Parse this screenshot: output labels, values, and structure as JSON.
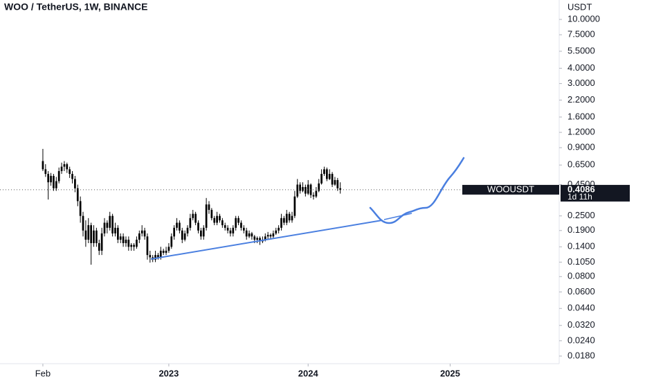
{
  "chart_data": {
    "type": "candlestick",
    "title": "WOO / TetherUS, 1W, BINANCE",
    "y_axis_label": "USDT",
    "symbol_label": "WOOUSDT",
    "last_price": 0.4086,
    "countdown": "1d 11h",
    "color": "#000000",
    "log_scale": true,
    "grid": false,
    "xlim": [
      -16,
      192.7
    ],
    "xticks": [
      {
        "value": 0,
        "label": "Feb"
      },
      {
        "value": 47,
        "label": "2023"
      },
      {
        "value": 99,
        "label": "2024"
      },
      {
        "value": 152,
        "label": "2025"
      }
    ],
    "ylim": [
      0.0156,
      14.4
    ],
    "yticks": [
      {
        "value": 10,
        "label": "10.0000"
      },
      {
        "value": 7.5,
        "label": "7.5000"
      },
      {
        "value": 5.5,
        "label": "5.5000"
      },
      {
        "value": 4,
        "label": "4.0000"
      },
      {
        "value": 3,
        "label": "3.0000"
      },
      {
        "value": 2.2,
        "label": "2.2000"
      },
      {
        "value": 1.6,
        "label": "1.6000"
      },
      {
        "value": 1.2,
        "label": "1.2000"
      },
      {
        "value": 0.9,
        "label": "0.9000"
      },
      {
        "value": 0.65,
        "label": "0.6500"
      },
      {
        "value": 0.45,
        "label": "0.4500"
      },
      {
        "value": 0.25,
        "label": "0.2500"
      },
      {
        "value": 0.19,
        "label": "0.1900"
      },
      {
        "value": 0.14,
        "label": "0.1400"
      },
      {
        "value": 0.105,
        "label": "0.1050"
      },
      {
        "value": 0.08,
        "label": "0.0800"
      },
      {
        "value": 0.06,
        "label": "0.0600"
      },
      {
        "value": 0.044,
        "label": "0.0440"
      },
      {
        "value": 0.032,
        "label": "0.0320"
      },
      {
        "value": 0.024,
        "label": "0.0240"
      },
      {
        "value": 0.018,
        "label": "0.0180"
      }
    ],
    "candles": [
      [
        0.7,
        0.88,
        0.58,
        0.6
      ],
      [
        0.6,
        0.66,
        0.52,
        0.55
      ],
      [
        0.55,
        0.58,
        0.34,
        0.47
      ],
      [
        0.47,
        0.56,
        0.44,
        0.53
      ],
      [
        0.53,
        0.55,
        0.4,
        0.42
      ],
      [
        0.42,
        0.52,
        0.4,
        0.48
      ],
      [
        0.48,
        0.62,
        0.46,
        0.58
      ],
      [
        0.58,
        0.68,
        0.55,
        0.63
      ],
      [
        0.63,
        0.7,
        0.58,
        0.66
      ],
      [
        0.66,
        0.68,
        0.56,
        0.6
      ],
      [
        0.6,
        0.63,
        0.51,
        0.55
      ],
      [
        0.55,
        0.58,
        0.46,
        0.5
      ],
      [
        0.5,
        0.53,
        0.39,
        0.42
      ],
      [
        0.42,
        0.45,
        0.3,
        0.33
      ],
      [
        0.33,
        0.36,
        0.22,
        0.25
      ],
      [
        0.25,
        0.27,
        0.17,
        0.19
      ],
      [
        0.19,
        0.23,
        0.14,
        0.16
      ],
      [
        0.16,
        0.24,
        0.15,
        0.21
      ],
      [
        0.21,
        0.22,
        0.1,
        0.15
      ],
      [
        0.15,
        0.21,
        0.14,
        0.19
      ],
      [
        0.19,
        0.2,
        0.14,
        0.15
      ],
      [
        0.15,
        0.16,
        0.12,
        0.13
      ],
      [
        0.13,
        0.2,
        0.12,
        0.18
      ],
      [
        0.18,
        0.24,
        0.17,
        0.22
      ],
      [
        0.22,
        0.23,
        0.18,
        0.2
      ],
      [
        0.2,
        0.27,
        0.19,
        0.25
      ],
      [
        0.25,
        0.26,
        0.17,
        0.18
      ],
      [
        0.18,
        0.22,
        0.17,
        0.2
      ],
      [
        0.2,
        0.21,
        0.15,
        0.16
      ],
      [
        0.16,
        0.18,
        0.15,
        0.17
      ],
      [
        0.17,
        0.18,
        0.14,
        0.15
      ],
      [
        0.15,
        0.17,
        0.14,
        0.16
      ],
      [
        0.16,
        0.17,
        0.13,
        0.14
      ],
      [
        0.14,
        0.15,
        0.13,
        0.145
      ],
      [
        0.145,
        0.15,
        0.13,
        0.14
      ],
      [
        0.14,
        0.17,
        0.135,
        0.16
      ],
      [
        0.16,
        0.19,
        0.15,
        0.18
      ],
      [
        0.18,
        0.21,
        0.17,
        0.19
      ],
      [
        0.19,
        0.2,
        0.16,
        0.17
      ],
      [
        0.17,
        0.18,
        0.11,
        0.12
      ],
      [
        0.12,
        0.13,
        0.104,
        0.115
      ],
      [
        0.115,
        0.12,
        0.105,
        0.11
      ],
      [
        0.11,
        0.13,
        0.105,
        0.12
      ],
      [
        0.12,
        0.125,
        0.11,
        0.115
      ],
      [
        0.115,
        0.14,
        0.11,
        0.13
      ],
      [
        0.13,
        0.135,
        0.12,
        0.125
      ],
      [
        0.125,
        0.14,
        0.12,
        0.13
      ],
      [
        0.13,
        0.15,
        0.125,
        0.14
      ],
      [
        0.14,
        0.18,
        0.135,
        0.17
      ],
      [
        0.17,
        0.21,
        0.16,
        0.2
      ],
      [
        0.2,
        0.24,
        0.19,
        0.22
      ],
      [
        0.22,
        0.23,
        0.18,
        0.19
      ],
      [
        0.19,
        0.2,
        0.15,
        0.16
      ],
      [
        0.16,
        0.19,
        0.155,
        0.18
      ],
      [
        0.18,
        0.21,
        0.17,
        0.2
      ],
      [
        0.2,
        0.26,
        0.19,
        0.24
      ],
      [
        0.24,
        0.28,
        0.23,
        0.26
      ],
      [
        0.26,
        0.27,
        0.21,
        0.22
      ],
      [
        0.22,
        0.23,
        0.18,
        0.19
      ],
      [
        0.19,
        0.2,
        0.16,
        0.17
      ],
      [
        0.17,
        0.21,
        0.16,
        0.2
      ],
      [
        0.2,
        0.35,
        0.19,
        0.31
      ],
      [
        0.31,
        0.33,
        0.26,
        0.28
      ],
      [
        0.28,
        0.29,
        0.23,
        0.24
      ],
      [
        0.24,
        0.25,
        0.21,
        0.22
      ],
      [
        0.22,
        0.27,
        0.21,
        0.25
      ],
      [
        0.25,
        0.26,
        0.22,
        0.23
      ],
      [
        0.23,
        0.24,
        0.2,
        0.21
      ],
      [
        0.21,
        0.22,
        0.19,
        0.2
      ],
      [
        0.2,
        0.21,
        0.18,
        0.19
      ],
      [
        0.19,
        0.2,
        0.17,
        0.18
      ],
      [
        0.18,
        0.21,
        0.17,
        0.2
      ],
      [
        0.2,
        0.25,
        0.19,
        0.24
      ],
      [
        0.24,
        0.25,
        0.21,
        0.22
      ],
      [
        0.22,
        0.23,
        0.19,
        0.2
      ],
      [
        0.2,
        0.21,
        0.18,
        0.19
      ],
      [
        0.19,
        0.2,
        0.16,
        0.17
      ],
      [
        0.17,
        0.19,
        0.165,
        0.18
      ],
      [
        0.18,
        0.185,
        0.16,
        0.17
      ],
      [
        0.17,
        0.175,
        0.15,
        0.16
      ],
      [
        0.16,
        0.17,
        0.15,
        0.165
      ],
      [
        0.165,
        0.17,
        0.145,
        0.155
      ],
      [
        0.155,
        0.17,
        0.15,
        0.16
      ],
      [
        0.16,
        0.18,
        0.155,
        0.17
      ],
      [
        0.17,
        0.185,
        0.16,
        0.175
      ],
      [
        0.175,
        0.18,
        0.16,
        0.17
      ],
      [
        0.17,
        0.19,
        0.165,
        0.18
      ],
      [
        0.18,
        0.2,
        0.175,
        0.19
      ],
      [
        0.19,
        0.21,
        0.18,
        0.2
      ],
      [
        0.2,
        0.26,
        0.19,
        0.24
      ],
      [
        0.24,
        0.25,
        0.21,
        0.22
      ],
      [
        0.22,
        0.28,
        0.21,
        0.26
      ],
      [
        0.26,
        0.27,
        0.22,
        0.23
      ],
      [
        0.23,
        0.27,
        0.22,
        0.25
      ],
      [
        0.25,
        0.4,
        0.24,
        0.36
      ],
      [
        0.36,
        0.5,
        0.35,
        0.45
      ],
      [
        0.45,
        0.47,
        0.38,
        0.4
      ],
      [
        0.4,
        0.47,
        0.39,
        0.43
      ],
      [
        0.43,
        0.45,
        0.36,
        0.38
      ],
      [
        0.38,
        0.49,
        0.37,
        0.45
      ],
      [
        0.45,
        0.46,
        0.35,
        0.37
      ],
      [
        0.37,
        0.39,
        0.34,
        0.36
      ],
      [
        0.36,
        0.43,
        0.35,
        0.4
      ],
      [
        0.4,
        0.5,
        0.39,
        0.46
      ],
      [
        0.46,
        0.6,
        0.45,
        0.55
      ],
      [
        0.55,
        0.63,
        0.53,
        0.6
      ],
      [
        0.6,
        0.62,
        0.48,
        0.5
      ],
      [
        0.5,
        0.6,
        0.49,
        0.55
      ],
      [
        0.55,
        0.57,
        0.43,
        0.45
      ],
      [
        0.45,
        0.52,
        0.44,
        0.49
      ],
      [
        0.49,
        0.51,
        0.4,
        0.42
      ],
      [
        0.42,
        0.47,
        0.38,
        0.4086
      ]
    ]
  }
}
